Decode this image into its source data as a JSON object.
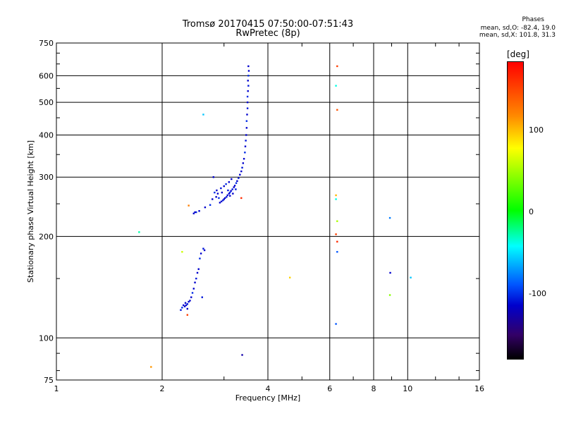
{
  "header": {
    "title_line1": "Tromsø 20170415 07:50:00-07:51:43",
    "title_line2": "RwPretec (8p)",
    "phases_title": "Phases",
    "phases_o": "mean, sd,O: -82.4, 19.0",
    "phases_x": "mean, sd,X: 101.8, 31.3"
  },
  "colorbar": {
    "label": "[deg]",
    "ticks": [
      "100",
      "0",
      "-100"
    ],
    "tick_values": [
      100,
      0,
      -100
    ],
    "range": [
      -180,
      180
    ]
  },
  "chart_data": {
    "type": "scatter",
    "title": "Tromsø 20170415 07:50:00-07:51:43",
    "subtitle": "RwPretec (8p)",
    "xlabel": "Frequency [MHz]",
    "ylabel": "Stationary phase Virtual Height [km]",
    "xscale": "log2",
    "yscale": "log",
    "xlim": [
      1,
      16
    ],
    "ylim": [
      75,
      750
    ],
    "xticks": [
      1,
      2,
      4,
      6,
      8,
      10,
      16
    ],
    "xtick_labels": [
      "1",
      "2",
      "4",
      "6",
      "8",
      "10",
      "16"
    ],
    "yticks": [
      75,
      100,
      200,
      300,
      400,
      500,
      600,
      750
    ],
    "ytick_labels": [
      "75",
      "100",
      "200",
      "300",
      "400",
      "500",
      "600",
      "750"
    ],
    "grid": true,
    "points": [
      [
        3.52,
        640,
        -110
      ],
      [
        3.53,
        620,
        -110
      ],
      [
        3.52,
        600,
        -100
      ],
      [
        3.51,
        580,
        -110
      ],
      [
        3.52,
        560,
        -105
      ],
      [
        3.51,
        540,
        -110
      ],
      [
        3.5,
        520,
        -100
      ],
      [
        3.5,
        500,
        -110
      ],
      [
        3.5,
        480,
        -105
      ],
      [
        3.49,
        460,
        -110
      ],
      [
        3.48,
        440,
        -100
      ],
      [
        3.48,
        420,
        -110
      ],
      [
        3.47,
        400,
        -110
      ],
      [
        3.46,
        385,
        -105
      ],
      [
        3.45,
        370,
        -110
      ],
      [
        3.44,
        355,
        -100
      ],
      [
        3.42,
        340,
        -110
      ],
      [
        3.4,
        330,
        -110
      ],
      [
        3.38,
        320,
        -105
      ],
      [
        3.36,
        312,
        -110
      ],
      [
        3.33,
        305,
        -110
      ],
      [
        3.3,
        298,
        -105
      ],
      [
        3.27,
        292,
        -110
      ],
      [
        3.25,
        288,
        -100
      ],
      [
        3.22,
        283,
        -110
      ],
      [
        3.2,
        280,
        -110
      ],
      [
        3.17,
        276,
        -105
      ],
      [
        3.14,
        273,
        -110
      ],
      [
        3.12,
        270,
        -100
      ],
      [
        3.1,
        268,
        -110
      ],
      [
        3.07,
        265,
        -110
      ],
      [
        3.05,
        262,
        -105
      ],
      [
        3.02,
        260,
        -110
      ],
      [
        3.0,
        258,
        -110
      ],
      [
        2.98,
        256,
        -105
      ],
      [
        2.95,
        254,
        -110
      ],
      [
        2.92,
        252,
        -110
      ],
      [
        2.9,
        260,
        -100
      ],
      [
        2.88,
        268,
        -110
      ],
      [
        2.86,
        274,
        -110
      ],
      [
        2.94,
        278,
        -105
      ],
      [
        3.0,
        282,
        -110
      ],
      [
        3.04,
        286,
        -100
      ],
      [
        3.1,
        290,
        -110
      ],
      [
        3.15,
        296,
        -110
      ],
      [
        2.8,
        300,
        -110
      ],
      [
        2.82,
        270,
        -100
      ],
      [
        2.85,
        262,
        -110
      ],
      [
        3.08,
        274,
        -105
      ],
      [
        3.12,
        264,
        -110
      ],
      [
        3.18,
        268,
        -110
      ],
      [
        3.24,
        276,
        -105
      ],
      [
        2.78,
        258,
        -110
      ],
      [
        2.96,
        270,
        -110
      ],
      [
        2.74,
        248,
        -100
      ],
      [
        2.65,
        244,
        -110
      ],
      [
        2.55,
        238,
        -110
      ],
      [
        2.5,
        236,
        -100
      ],
      [
        2.46,
        234,
        -110
      ],
      [
        2.48,
        236,
        -110
      ],
      [
        2.62,
        184,
        -105
      ],
      [
        2.64,
        182,
        -110
      ],
      [
        2.58,
        178,
        -110
      ],
      [
        2.56,
        172,
        -100
      ],
      [
        2.54,
        160,
        -110
      ],
      [
        2.52,
        156,
        -110
      ],
      [
        2.5,
        150,
        -105
      ],
      [
        2.48,
        146,
        -110
      ],
      [
        2.46,
        140,
        -110
      ],
      [
        2.44,
        136,
        -100
      ],
      [
        2.42,
        132,
        -110
      ],
      [
        2.38,
        128,
        -110
      ],
      [
        2.36,
        126,
        -105
      ],
      [
        2.34,
        125,
        -110
      ],
      [
        2.32,
        124,
        -110
      ],
      [
        2.28,
        123,
        -100
      ],
      [
        2.3,
        125,
        -110
      ],
      [
        2.33,
        127,
        -110
      ],
      [
        2.4,
        129,
        -110
      ],
      [
        2.26,
        121,
        -105
      ],
      [
        2.36,
        122,
        -110
      ],
      [
        2.6,
        132,
        -105
      ],
      [
        1.72,
        206,
        -30
      ],
      [
        2.62,
        460,
        -60
      ],
      [
        2.38,
        247,
        120
      ],
      [
        2.28,
        180,
        60
      ],
      [
        2.36,
        117,
        150
      ],
      [
        3.36,
        260,
        160
      ],
      [
        3.38,
        89,
        -120
      ],
      [
        1.86,
        82,
        110
      ],
      [
        4.62,
        151,
        90
      ],
      [
        6.3,
        640,
        150
      ],
      [
        6.25,
        560,
        -40
      ],
      [
        6.3,
        475,
        140
      ],
      [
        6.25,
        265,
        100
      ],
      [
        6.25,
        258,
        -40
      ],
      [
        6.3,
        222,
        50
      ],
      [
        6.25,
        203,
        150
      ],
      [
        6.3,
        193,
        160
      ],
      [
        6.3,
        180,
        -90
      ],
      [
        6.25,
        110,
        -90
      ],
      [
        8.9,
        227,
        -80
      ],
      [
        8.92,
        156,
        -110
      ],
      [
        8.9,
        134,
        40
      ],
      [
        10.2,
        151,
        -60
      ]
    ]
  }
}
